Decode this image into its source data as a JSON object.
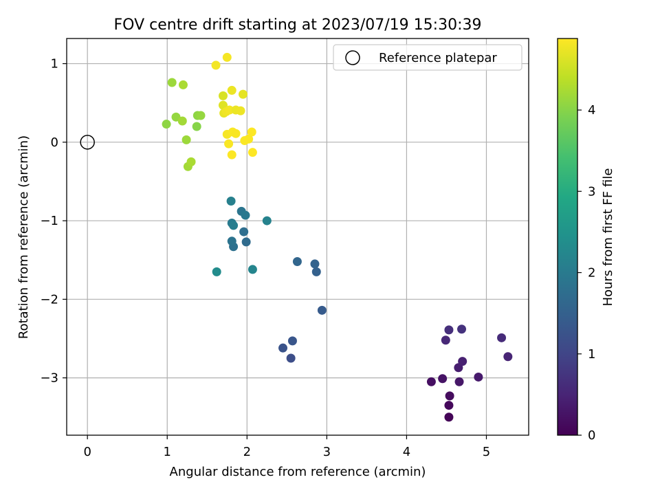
{
  "chart_data": {
    "type": "scatter",
    "title": "FOV centre drift starting at 2023/07/19 15:30:39",
    "xlabel": "Angular distance from reference (arcmin)",
    "ylabel": "Rotation from reference (arcmin)",
    "xlim": [
      -0.26,
      5.53
    ],
    "ylim": [
      -3.73,
      1.32
    ],
    "xticks": [
      0,
      1,
      2,
      3,
      4,
      5
    ],
    "yticks": [
      -3,
      -2,
      -1,
      0,
      1
    ],
    "xtick_labels": [
      "0",
      "1",
      "2",
      "3",
      "4",
      "5"
    ],
    "ytick_labels": [
      "−3",
      "−2",
      "−1",
      "0",
      "1"
    ],
    "grid": true,
    "legend": {
      "position": "top-right",
      "entries": [
        "Reference platepar"
      ]
    },
    "reference_point": {
      "x": 0,
      "y": 0,
      "label": "Reference platepar",
      "marker": "open-circle"
    },
    "colorbar": {
      "label": "Hours from first FF file",
      "range": [
        0,
        4.88
      ],
      "ticks": [
        0,
        1,
        2,
        3,
        4
      ],
      "tick_labels": [
        "0",
        "1",
        "2",
        "3",
        "4"
      ],
      "colormap": "viridis"
    },
    "points": [
      {
        "x": 4.53,
        "y": -3.5,
        "c": 0.05
      },
      {
        "x": 4.53,
        "y": -3.35,
        "c": 0.1
      },
      {
        "x": 4.54,
        "y": -3.23,
        "c": 0.15
      },
      {
        "x": 4.31,
        "y": -3.05,
        "c": 0.2
      },
      {
        "x": 4.45,
        "y": -3.01,
        "c": 0.25
      },
      {
        "x": 4.66,
        "y": -3.05,
        "c": 0.3
      },
      {
        "x": 4.9,
        "y": -2.99,
        "c": 0.35
      },
      {
        "x": 4.65,
        "y": -2.87,
        "c": 0.4
      },
      {
        "x": 4.7,
        "y": -2.79,
        "c": 0.45
      },
      {
        "x": 5.27,
        "y": -2.73,
        "c": 0.5
      },
      {
        "x": 4.49,
        "y": -2.52,
        "c": 0.55
      },
      {
        "x": 5.19,
        "y": -2.49,
        "c": 0.6
      },
      {
        "x": 4.53,
        "y": -2.39,
        "c": 0.65
      },
      {
        "x": 4.69,
        "y": -2.38,
        "c": 0.7
      },
      {
        "x": 2.55,
        "y": -2.75,
        "c": 1.15
      },
      {
        "x": 2.45,
        "y": -2.62,
        "c": 1.25
      },
      {
        "x": 2.57,
        "y": -2.53,
        "c": 1.3
      },
      {
        "x": 2.94,
        "y": -2.14,
        "c": 1.4
      },
      {
        "x": 2.87,
        "y": -1.65,
        "c": 1.5
      },
      {
        "x": 2.85,
        "y": -1.55,
        "c": 1.55
      },
      {
        "x": 2.63,
        "y": -1.52,
        "c": 1.6
      },
      {
        "x": 1.99,
        "y": -1.27,
        "c": 1.7
      },
      {
        "x": 1.96,
        "y": -1.14,
        "c": 1.75
      },
      {
        "x": 1.83,
        "y": -1.33,
        "c": 1.8
      },
      {
        "x": 1.81,
        "y": -1.26,
        "c": 1.85
      },
      {
        "x": 1.93,
        "y": -0.88,
        "c": 1.9
      },
      {
        "x": 1.98,
        "y": -0.93,
        "c": 1.95
      },
      {
        "x": 1.81,
        "y": -1.03,
        "c": 2.0
      },
      {
        "x": 1.83,
        "y": -1.06,
        "c": 2.05
      },
      {
        "x": 1.8,
        "y": -0.75,
        "c": 2.1
      },
      {
        "x": 2.25,
        "y": -1.0,
        "c": 2.15
      },
      {
        "x": 2.07,
        "y": -1.62,
        "c": 2.2
      },
      {
        "x": 1.62,
        "y": -1.65,
        "c": 2.35
      },
      {
        "x": 1.26,
        "y": -0.31,
        "c": 4.2
      },
      {
        "x": 1.3,
        "y": -0.25,
        "c": 4.25
      },
      {
        "x": 1.24,
        "y": 0.03,
        "c": 4.15
      },
      {
        "x": 0.99,
        "y": 0.23,
        "c": 4.05
      },
      {
        "x": 1.11,
        "y": 0.32,
        "c": 4.1
      },
      {
        "x": 1.19,
        "y": 0.27,
        "c": 4.2
      },
      {
        "x": 1.37,
        "y": 0.2,
        "c": 4.0
      },
      {
        "x": 1.38,
        "y": 0.34,
        "c": 4.05
      },
      {
        "x": 1.42,
        "y": 0.34,
        "c": 4.1
      },
      {
        "x": 1.06,
        "y": 0.76,
        "c": 4.15
      },
      {
        "x": 1.2,
        "y": 0.73,
        "c": 4.25
      },
      {
        "x": 1.61,
        "y": 0.98,
        "c": 4.8
      },
      {
        "x": 1.75,
        "y": 1.08,
        "c": 4.82
      },
      {
        "x": 1.7,
        "y": 0.59,
        "c": 4.6
      },
      {
        "x": 1.81,
        "y": 0.66,
        "c": 4.75
      },
      {
        "x": 1.95,
        "y": 0.61,
        "c": 4.7
      },
      {
        "x": 1.7,
        "y": 0.47,
        "c": 4.65
      },
      {
        "x": 1.71,
        "y": 0.37,
        "c": 4.72
      },
      {
        "x": 1.74,
        "y": 0.39,
        "c": 4.78
      },
      {
        "x": 1.78,
        "y": 0.41,
        "c": 4.8
      },
      {
        "x": 1.86,
        "y": 0.41,
        "c": 4.74
      },
      {
        "x": 1.92,
        "y": 0.4,
        "c": 4.76
      },
      {
        "x": 1.75,
        "y": 0.1,
        "c": 4.83
      },
      {
        "x": 1.82,
        "y": 0.13,
        "c": 4.85
      },
      {
        "x": 1.86,
        "y": 0.11,
        "c": 4.84
      },
      {
        "x": 1.97,
        "y": 0.02,
        "c": 4.86
      },
      {
        "x": 2.02,
        "y": 0.04,
        "c": 4.86
      },
      {
        "x": 2.06,
        "y": 0.13,
        "c": 4.87
      },
      {
        "x": 1.77,
        "y": -0.02,
        "c": 4.85
      },
      {
        "x": 1.81,
        "y": -0.16,
        "c": 4.87
      },
      {
        "x": 2.07,
        "y": -0.13,
        "c": 4.88
      }
    ]
  }
}
